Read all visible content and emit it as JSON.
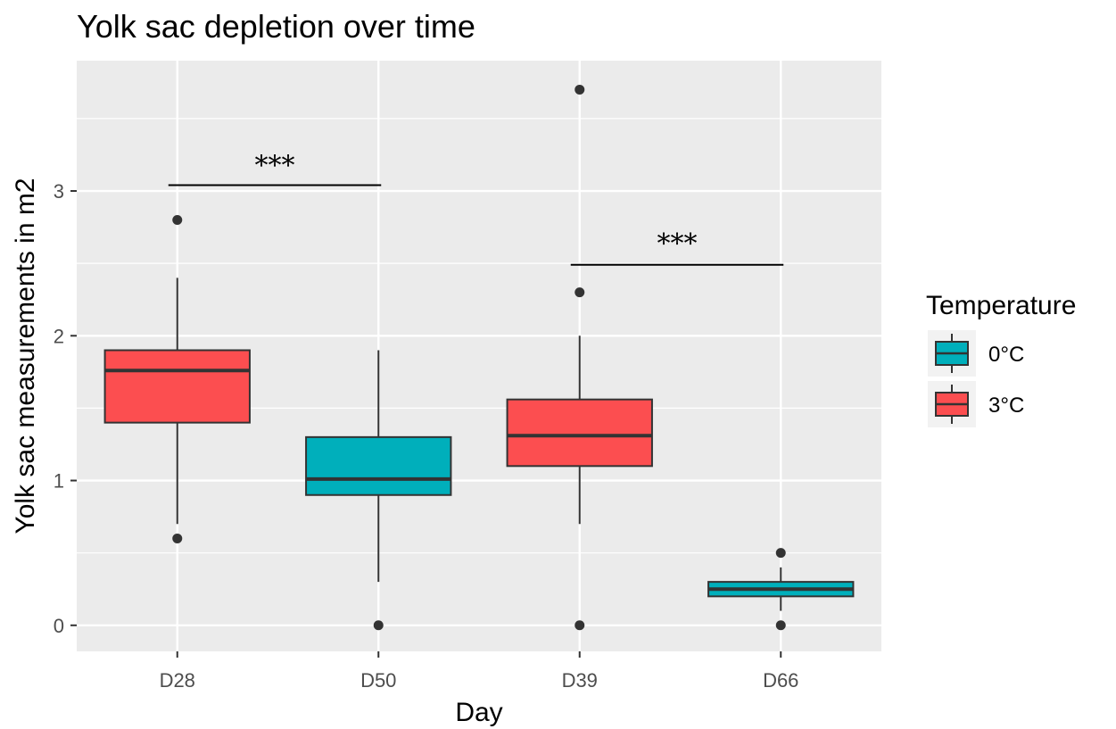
{
  "chart_data": {
    "type": "boxplot",
    "title": "Yolk sac depletion over time",
    "xlabel": "Day",
    "ylabel": "Yolk sac measurements in m2",
    "categories": [
      "D28",
      "D50",
      "D39",
      "D66"
    ],
    "ylim": [
      -0.18,
      3.9
    ],
    "yticks": [
      0,
      1,
      2,
      3
    ],
    "grid": true,
    "legend": {
      "title": "Temperature",
      "position": "right",
      "entries": [
        {
          "label": "0°C",
          "color": "#00AFBB"
        },
        {
          "label": "3°C",
          "color": "#FC4E50"
        }
      ]
    },
    "boxes": [
      {
        "category": "D28",
        "group": "3°C",
        "whisker_low": 0.7,
        "q1": 1.4,
        "median": 1.76,
        "q3": 1.9,
        "whisker_high": 2.4,
        "outliers": [
          2.8,
          0.6
        ]
      },
      {
        "category": "D50",
        "group": "0°C",
        "whisker_low": 0.3,
        "q1": 0.9,
        "median": 1.01,
        "q3": 1.3,
        "whisker_high": 1.9,
        "outliers": [
          0
        ]
      },
      {
        "category": "D39",
        "group": "3°C",
        "whisker_low": 0.7,
        "q1": 1.1,
        "median": 1.31,
        "q3": 1.56,
        "whisker_high": 2.0,
        "outliers": [
          3.7,
          2.3,
          0
        ]
      },
      {
        "category": "D66",
        "group": "0°C",
        "whisker_low": 0.1,
        "q1": 0.2,
        "median": 0.25,
        "q3": 0.3,
        "whisker_high": 0.4,
        "outliers": [
          0.5,
          0
        ]
      }
    ],
    "annotations": [
      {
        "label": "***",
        "from": "D28",
        "to": "D50",
        "y": 3.04,
        "label_y": 3.2
      },
      {
        "label": "***",
        "from": "D39",
        "to": "D66",
        "y": 2.49,
        "label_y": 2.66
      }
    ],
    "colors": {
      "panel_bg": "#EBEBEB",
      "grid": "#FFFFFF",
      "box_line": "#333333"
    }
  }
}
